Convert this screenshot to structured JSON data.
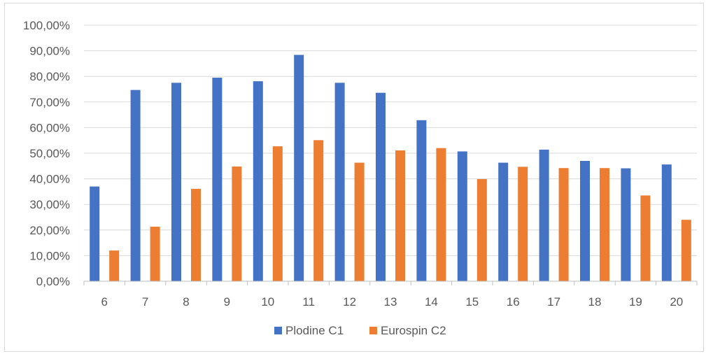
{
  "chart_data": {
    "type": "bar",
    "categories": [
      "6",
      "7",
      "8",
      "9",
      "10",
      "11",
      "12",
      "13",
      "14",
      "15",
      "16",
      "17",
      "18",
      "19",
      "20"
    ],
    "series": [
      {
        "name": "Plodine C1",
        "color": "#4472c4",
        "values": [
          37.0,
          74.7,
          77.5,
          79.5,
          78.1,
          88.4,
          77.5,
          73.6,
          62.9,
          50.7,
          46.3,
          51.4,
          47.0,
          44.1,
          45.6
        ]
      },
      {
        "name": "Eurospin C2",
        "color": "#ed7d31",
        "values": [
          12.0,
          21.3,
          36.1,
          44.8,
          52.7,
          55.1,
          46.3,
          51.1,
          52.0,
          39.9,
          44.7,
          44.2,
          44.2,
          33.5,
          24.0
        ]
      }
    ],
    "ylim": [
      0,
      100
    ],
    "ytick_labels": [
      "0,00%",
      "10,00%",
      "20,00%",
      "30,00%",
      "40,00%",
      "50,00%",
      "60,00%",
      "70,00%",
      "80,00%",
      "90,00%",
      "100,00%"
    ],
    "grid": true,
    "legend_position": "bottom"
  }
}
